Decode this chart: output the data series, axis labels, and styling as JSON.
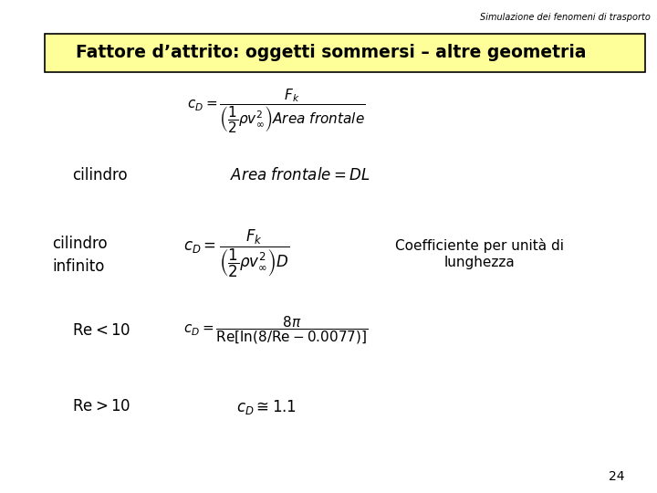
{
  "bg_color": "#ffffff",
  "header_text": "Simulazione dei fenomeni di trasporto",
  "title_text": "Fattore d’attrito: oggetti sommersi – altre geometria",
  "title_bg": "#ffff99",
  "page_number": "24",
  "formula_main": "$c_D = \\dfrac{F_k}{\\left(\\dfrac{1}{2}\\rho v_{\\infty}^2\\right) \\mathit{Area\\ frontale}}$",
  "label_cilindro": "cilindro",
  "formula_cilindro": "$\\mathit{Area\\ frontale} = DL$",
  "label_cilindro_inf1": "cilindro",
  "label_cilindro_inf2": "infinito",
  "formula_cilindro_inf": "$c_D = \\dfrac{F_k}{\\left(\\dfrac{1}{2}\\rho v_{\\infty}^2\\right)D}$",
  "note_cilindro_inf": "Coefficiente per unità di\nlunghezza",
  "label_re_lt": "$\\mathrm{Re} < 10$",
  "formula_re_lt": "$c_D = \\dfrac{8\\pi}{\\mathrm{Re}[\\ln(8/\\mathrm{Re}-0.0077)]}$",
  "label_re_gt": "$\\mathrm{Re} > 10$",
  "formula_re_gt": "$c_D \\cong 1.1$"
}
